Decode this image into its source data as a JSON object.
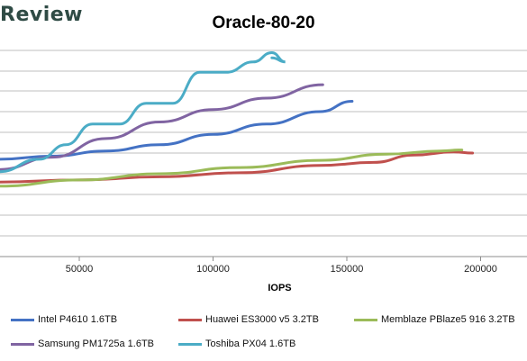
{
  "brand": "Review",
  "chart_data": {
    "type": "line",
    "title": "Oracle-80-20",
    "xlabel": "IOPS",
    "ylabel": "",
    "xlim": [
      20000,
      210000
    ],
    "ylim": [
      0,
      10
    ],
    "x_ticks": [
      50000,
      100000,
      150000,
      200000
    ],
    "x_tick_labels": [
      "50000",
      "100000",
      "150000",
      "200000"
    ],
    "grid": "horizontal",
    "legend_position": "bottom",
    "series": [
      {
        "name": "Intel P4610 1.6TB",
        "color": "#4472c4",
        "x": [
          20000,
          40000,
          60000,
          80000,
          100000,
          120000,
          140000,
          152000
        ],
        "y": [
          4.7,
          4.85,
          5.1,
          5.4,
          5.9,
          6.4,
          7.0,
          7.5
        ]
      },
      {
        "name": "Huawei ES3000 v5 3.2TB",
        "color": "#c0504d",
        "x": [
          20000,
          50000,
          80000,
          110000,
          140000,
          160000,
          175000,
          190000,
          197000
        ],
        "y": [
          3.6,
          3.7,
          3.85,
          4.05,
          4.4,
          4.55,
          4.9,
          5.05,
          5.0
        ]
      },
      {
        "name": "Memblaze PBlaze5 916 3.2TB",
        "color": "#9bbb59",
        "x": [
          20000,
          50000,
          80000,
          110000,
          140000,
          165000,
          185000,
          193000
        ],
        "y": [
          3.4,
          3.7,
          4.0,
          4.3,
          4.65,
          4.95,
          5.1,
          5.15
        ]
      },
      {
        "name": "Samsung PM1725a 1.6TB",
        "color": "#8064a2",
        "x": [
          20000,
          40000,
          60000,
          80000,
          100000,
          120000,
          141000
        ],
        "y": [
          4.2,
          4.8,
          5.7,
          6.5,
          7.1,
          7.65,
          8.3
        ]
      },
      {
        "name": "Toshiba PX04 1.6TB",
        "color": "#4bacc6",
        "x": [
          20000,
          35000,
          45000,
          55000,
          65000,
          75000,
          85000,
          95000,
          105000,
          115000,
          122000,
          127000,
          122000
        ],
        "y": [
          4.1,
          4.7,
          5.4,
          6.4,
          6.4,
          7.4,
          7.4,
          8.9,
          8.9,
          9.4,
          9.85,
          9.4,
          9.6
        ]
      }
    ]
  }
}
